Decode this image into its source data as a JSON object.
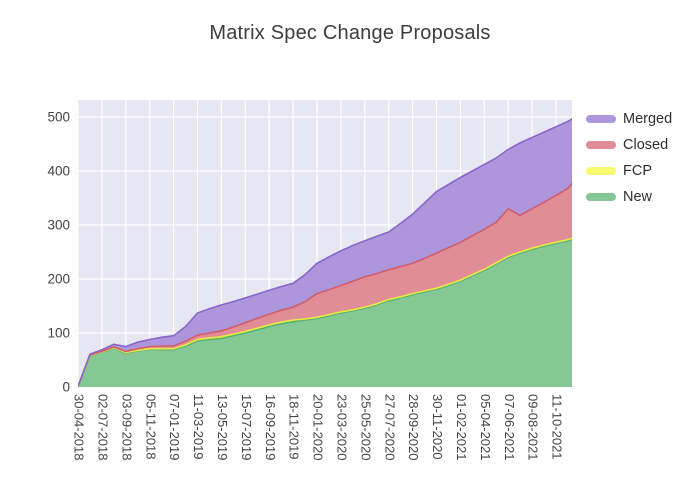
{
  "title": "Matrix Spec Change Proposals",
  "legend": {
    "position": "top-right-outside",
    "items": [
      {
        "label": "Merged",
        "color": "#ae96dc"
      },
      {
        "label": "Closed",
        "color": "#e08d97"
      },
      {
        "label": "FCP",
        "color": "#f9f96f"
      },
      {
        "label": "New",
        "color": "#85c795"
      }
    ]
  },
  "yaxis": {
    "tick_labels": [
      "0",
      "100",
      "200",
      "300",
      "400",
      "500"
    ]
  },
  "xaxis": {
    "tick_labels": [
      "30-04-2018",
      "02-07-2018",
      "03-09-2018",
      "05-11-2018",
      "07-01-2019",
      "11-03-2019",
      "13-05-2019",
      "15-07-2019",
      "16-09-2019",
      "18-11-2019",
      "20-01-2020",
      "23-03-2020",
      "25-05-2020",
      "27-07-2020",
      "28-09-2020",
      "30-11-2020",
      "01-02-2021",
      "05-04-2021",
      "07-06-2021",
      "09-08-2021",
      "11-10-2021"
    ],
    "tick_angle_deg": 90
  },
  "chart_data": {
    "type": "area",
    "stacked": true,
    "title": "Matrix Spec Change Proposals",
    "xlabel": "",
    "ylabel": "",
    "ylim": [
      0,
      535
    ],
    "ytick_values": [
      0,
      100,
      200,
      300,
      400,
      500
    ],
    "categories": [
      "30-04-2018",
      "02-07-2018",
      "03-09-2018",
      "05-11-2018",
      "07-01-2019",
      "11-03-2019",
      "13-05-2019",
      "15-07-2019",
      "16-09-2019",
      "18-11-2019",
      "20-01-2020",
      "23-03-2020",
      "25-05-2020",
      "27-07-2020",
      "28-09-2020",
      "30-11-2020",
      "01-02-2021",
      "05-04-2021",
      "07-06-2021",
      "09-08-2021",
      "11-10-2021"
    ],
    "x_units": "tick-index (0 = first category, spacing = 63 days)",
    "x": [
      0,
      0.5,
      1,
      1.5,
      2,
      2.5,
      3,
      3.5,
      4,
      4.5,
      5,
      5.5,
      6,
      6.5,
      7,
      7.5,
      8,
      8.5,
      9,
      9.5,
      10,
      10.5,
      11,
      11.5,
      12,
      12.5,
      13,
      13.5,
      14,
      14.5,
      15,
      15.5,
      16,
      16.5,
      17,
      17.5,
      18,
      18.5,
      19,
      19.5,
      20,
      20.5,
      20.7
    ],
    "stack_order_bottom_to_top": [
      "New",
      "FCP",
      "Closed",
      "Merged"
    ],
    "series": [
      {
        "name": "New",
        "fill": "#85c795",
        "line": "#55b273",
        "values": [
          1,
          57,
          64,
          72,
          63,
          67,
          70,
          69,
          69,
          76,
          85,
          88,
          90,
          95,
          100,
          106,
          112,
          117,
          121,
          124,
          127,
          132,
          137,
          141,
          146,
          152,
          160,
          165,
          171,
          176,
          181,
          188,
          196,
          206,
          216,
          228,
          240,
          248,
          255,
          261,
          266,
          271,
          274
        ]
      },
      {
        "name": "FCP",
        "fill": "#f9f96f",
        "line": "#e9e93f",
        "values": [
          0,
          1,
          1,
          1,
          1,
          1,
          1,
          2,
          2,
          2,
          3,
          3,
          3,
          3,
          3,
          3,
          3,
          3,
          3,
          2,
          2,
          2,
          2,
          2,
          2,
          2,
          2,
          2,
          2,
          2,
          2,
          2,
          2,
          2,
          2,
          2,
          2,
          2,
          2,
          2,
          2,
          2,
          2
        ]
      },
      {
        "name": "Closed",
        "fill": "#e08d97",
        "line": "#d05f6d",
        "values": [
          0,
          1,
          1,
          1,
          2,
          3,
          4,
          5,
          5,
          7,
          8,
          9,
          11,
          13,
          16,
          18,
          20,
          22,
          24,
          32,
          44,
          46,
          49,
          53,
          56,
          56,
          55,
          56,
          56,
          60,
          65,
          68,
          70,
          72,
          74,
          75,
          88,
          68,
          73,
          79,
          87,
          95,
          102
        ]
      },
      {
        "name": "Merged",
        "fill": "#ae96dc",
        "line": "#8a66c9",
        "values": [
          0,
          2,
          3,
          5,
          9,
          12,
          13,
          16,
          19,
          27,
          41,
          45,
          48,
          47,
          46,
          45,
          44,
          44,
          44,
          50,
          56,
          61,
          64,
          66,
          67,
          69,
          70,
          80,
          91,
          103,
          114,
          117,
          120,
          120,
          120,
          119,
          110,
          134,
          132,
          130,
          127,
          124,
          119
        ]
      }
    ],
    "plot_background": "#e7e6f3",
    "gridline_color": "#ffffff",
    "grid": true,
    "legend_entries_top_to_bottom": [
      "Merged",
      "Closed",
      "FCP",
      "New"
    ]
  }
}
